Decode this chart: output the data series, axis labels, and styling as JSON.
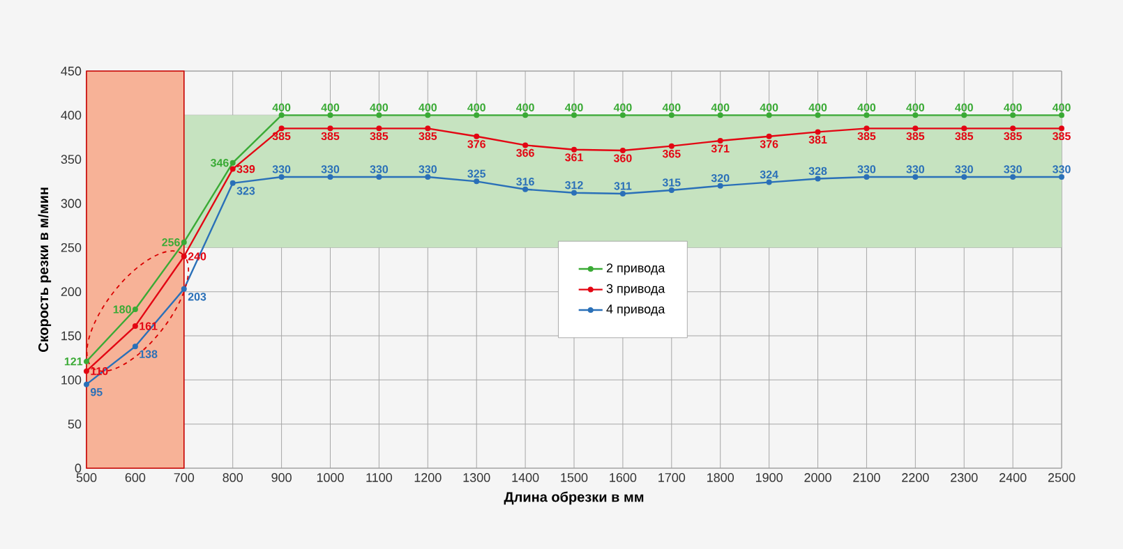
{
  "chart_data": {
    "type": "line",
    "xlabel": "Длина обрезки в мм",
    "ylabel": "Скорость резки в м/мин",
    "x": [
      500,
      600,
      700,
      800,
      900,
      1000,
      1100,
      1200,
      1300,
      1400,
      1500,
      1600,
      1700,
      1800,
      1900,
      2000,
      2100,
      2200,
      2300,
      2400,
      2500
    ],
    "series": [
      {
        "name": "2 привода",
        "color": "#3aaa35",
        "values": [
          121,
          180,
          256,
          346,
          400,
          400,
          400,
          400,
          400,
          400,
          400,
          400,
          400,
          400,
          400,
          400,
          400,
          400,
          400,
          400,
          400
        ]
      },
      {
        "name": "3 привода",
        "color": "#e30613",
        "values": [
          110,
          161,
          240,
          339,
          385,
          385,
          385,
          385,
          376,
          366,
          361,
          360,
          365,
          371,
          376,
          381,
          385,
          385,
          385,
          385,
          385
        ]
      },
      {
        "name": "4 привода",
        "color": "#2a70b8",
        "values": [
          95,
          138,
          203,
          323,
          330,
          330,
          330,
          330,
          325,
          316,
          312,
          311,
          315,
          320,
          324,
          328,
          330,
          330,
          330,
          330,
          330
        ]
      }
    ],
    "xlim": [
      500,
      2500
    ],
    "xticks": [
      500,
      600,
      700,
      800,
      900,
      1000,
      1100,
      1200,
      1300,
      1400,
      1500,
      1600,
      1700,
      1800,
      1900,
      2000,
      2100,
      2200,
      2300,
      2400,
      2500
    ],
    "ylim": [
      0,
      450
    ],
    "yticks": [
      0,
      50,
      100,
      150,
      200,
      250,
      300,
      350,
      400,
      450
    ],
    "bands": [
      {
        "axis": "y",
        "from": 250,
        "to": 400,
        "color": "#c6e3c0"
      },
      {
        "axis": "x",
        "from": 500,
        "to": 700,
        "color": "#f7b297"
      }
    ],
    "grid": true,
    "legend": "center",
    "marker": "circle",
    "line_style": "solid",
    "data_labels": true
  }
}
